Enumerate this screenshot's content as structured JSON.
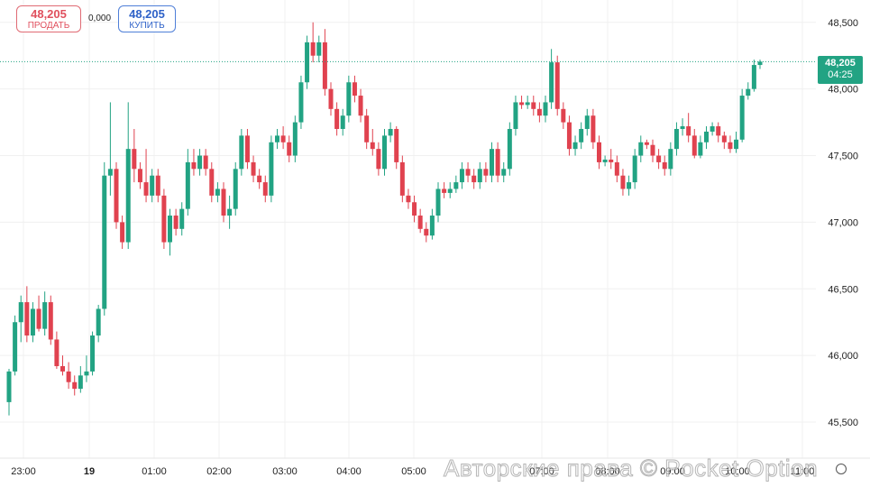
{
  "toolbar": {
    "sell": {
      "price": "48,205",
      "label": "ПРОДАТЬ"
    },
    "spread": "0,000",
    "buy": {
      "price": "48,205",
      "label": "КУПИТЬ"
    }
  },
  "current": {
    "price": "48,205",
    "countdown": "04:25"
  },
  "watermark": "Авторские права © Pocket Option",
  "colors": {
    "up": "#22a383",
    "down": "#e0424f",
    "grid": "#f0f0f0"
  },
  "chart_data": {
    "type": "candlestick",
    "y_ticks": [
      "45,500",
      "46,000",
      "46,500",
      "47,000",
      "47,500",
      "48,000",
      "48,500"
    ],
    "x_ticks": [
      "23:00",
      "19",
      "01:00",
      "02:00",
      "03:00",
      "04:00",
      "05:00",
      "07:00",
      "08:00",
      "09:00",
      "10:00",
      "11:00"
    ],
    "ylim": [
      45.25,
      48.6
    ],
    "last_price": 48.205,
    "candles": [
      [
        45.65,
        45.88,
        45.55,
        45.9
      ],
      [
        45.88,
        46.25,
        45.85,
        46.3
      ],
      [
        46.25,
        46.4,
        46.1,
        46.45
      ],
      [
        46.4,
        46.15,
        46.1,
        46.52
      ],
      [
        46.15,
        46.35,
        46.1,
        46.4
      ],
      [
        46.35,
        46.2,
        46.18,
        46.45
      ],
      [
        46.2,
        46.4,
        46.15,
        46.48
      ],
      [
        46.4,
        46.12,
        46.08,
        46.45
      ],
      [
        46.12,
        45.92,
        45.9,
        46.18
      ],
      [
        45.92,
        45.88,
        45.85,
        46.0
      ],
      [
        45.88,
        45.8,
        45.75,
        45.95
      ],
      [
        45.8,
        45.75,
        45.7,
        45.85
      ],
      [
        45.75,
        45.85,
        45.72,
        45.92
      ],
      [
        45.85,
        45.88,
        45.8,
        46.0
      ],
      [
        45.88,
        46.15,
        45.85,
        46.18
      ],
      [
        46.15,
        46.35,
        46.1,
        46.38
      ],
      [
        46.35,
        47.35,
        46.3,
        47.45
      ],
      [
        47.35,
        47.4,
        47.2,
        47.9
      ],
      [
        47.4,
        47.0,
        46.95,
        47.45
      ],
      [
        47.0,
        46.85,
        46.8,
        47.05
      ],
      [
        46.85,
        47.55,
        46.8,
        47.9
      ],
      [
        47.55,
        47.4,
        47.3,
        47.7
      ],
      [
        47.4,
        47.3,
        47.25,
        47.45
      ],
      [
        47.3,
        47.2,
        47.15,
        47.55
      ],
      [
        47.2,
        47.35,
        47.15,
        47.4
      ],
      [
        47.35,
        47.2,
        47.15,
        47.4
      ],
      [
        47.2,
        46.85,
        46.8,
        47.25
      ],
      [
        46.85,
        47.05,
        46.75,
        47.1
      ],
      [
        47.05,
        46.95,
        46.9,
        47.1
      ],
      [
        46.95,
        47.1,
        46.9,
        47.15
      ],
      [
        47.1,
        47.45,
        47.05,
        47.55
      ],
      [
        47.45,
        47.4,
        47.35,
        47.55
      ],
      [
        47.4,
        47.5,
        47.35,
        47.55
      ],
      [
        47.5,
        47.4,
        47.35,
        47.55
      ],
      [
        47.4,
        47.2,
        47.15,
        47.45
      ],
      [
        47.2,
        47.25,
        47.15,
        47.3
      ],
      [
        47.25,
        47.05,
        47.0,
        47.3
      ],
      [
        47.05,
        47.1,
        46.95,
        47.2
      ],
      [
        47.1,
        47.4,
        47.05,
        47.45
      ],
      [
        47.4,
        47.65,
        47.35,
        47.7
      ],
      [
        47.65,
        47.45,
        47.4,
        47.7
      ],
      [
        47.45,
        47.35,
        47.3,
        47.5
      ],
      [
        47.35,
        47.3,
        47.25,
        47.4
      ],
      [
        47.3,
        47.2,
        47.15,
        47.35
      ],
      [
        47.2,
        47.6,
        47.15,
        47.65
      ],
      [
        47.6,
        47.65,
        47.55,
        47.7
      ],
      [
        47.65,
        47.6,
        47.55,
        47.72
      ],
      [
        47.6,
        47.5,
        47.45,
        47.65
      ],
      [
        47.5,
        47.75,
        47.45,
        47.8
      ],
      [
        47.75,
        48.05,
        47.7,
        48.1
      ],
      [
        48.05,
        48.35,
        48.0,
        48.4
      ],
      [
        48.35,
        48.25,
        48.2,
        48.5
      ],
      [
        48.25,
        48.35,
        48.2,
        48.4
      ],
      [
        48.35,
        48.0,
        47.95,
        48.45
      ],
      [
        48.0,
        47.85,
        47.8,
        48.05
      ],
      [
        47.85,
        47.7,
        47.65,
        47.9
      ],
      [
        47.7,
        47.8,
        47.65,
        47.85
      ],
      [
        47.8,
        48.05,
        47.75,
        48.1
      ],
      [
        48.05,
        47.95,
        47.9,
        48.1
      ],
      [
        47.95,
        47.8,
        47.75,
        48.0
      ],
      [
        47.8,
        47.6,
        47.55,
        47.85
      ],
      [
        47.6,
        47.55,
        47.5,
        47.7
      ],
      [
        47.55,
        47.4,
        47.35,
        47.6
      ],
      [
        47.4,
        47.65,
        47.35,
        47.7
      ],
      [
        47.65,
        47.7,
        47.6,
        47.75
      ],
      [
        47.7,
        47.45,
        47.4,
        47.72
      ],
      [
        47.45,
        47.2,
        47.15,
        47.5
      ],
      [
        47.2,
        47.15,
        47.1,
        47.25
      ],
      [
        47.15,
        47.05,
        47.0,
        47.2
      ],
      [
        47.05,
        46.95,
        46.92,
        47.1
      ],
      [
        46.95,
        46.9,
        46.85,
        47.0
      ],
      [
        46.9,
        47.05,
        46.87,
        47.1
      ],
      [
        47.05,
        47.25,
        47.0,
        47.3
      ],
      [
        47.25,
        47.22,
        47.18,
        47.3
      ],
      [
        47.22,
        47.25,
        47.18,
        47.3
      ],
      [
        47.25,
        47.3,
        47.22,
        47.35
      ],
      [
        47.3,
        47.4,
        47.25,
        47.45
      ],
      [
        47.4,
        47.35,
        47.3,
        47.45
      ],
      [
        47.35,
        47.3,
        47.25,
        47.4
      ],
      [
        47.3,
        47.4,
        47.25,
        47.45
      ],
      [
        47.4,
        47.35,
        47.3,
        47.45
      ],
      [
        47.35,
        47.55,
        47.3,
        47.6
      ],
      [
        47.55,
        47.35,
        47.3,
        47.6
      ],
      [
        47.35,
        47.4,
        47.3,
        47.45
      ],
      [
        47.4,
        47.7,
        47.35,
        47.75
      ],
      [
        47.7,
        47.9,
        47.65,
        47.95
      ],
      [
        47.9,
        47.88,
        47.85,
        47.95
      ],
      [
        47.88,
        47.9,
        47.85,
        47.95
      ],
      [
        47.9,
        47.85,
        47.8,
        47.95
      ],
      [
        47.85,
        47.8,
        47.75,
        47.9
      ],
      [
        47.8,
        47.9,
        47.75,
        47.95
      ],
      [
        47.9,
        48.2,
        47.85,
        48.3
      ],
      [
        48.2,
        47.85,
        47.8,
        48.25
      ],
      [
        47.85,
        47.75,
        47.7,
        47.9
      ],
      [
        47.75,
        47.55,
        47.5,
        47.8
      ],
      [
        47.55,
        47.6,
        47.5,
        47.65
      ],
      [
        47.6,
        47.7,
        47.55,
        47.75
      ],
      [
        47.7,
        47.8,
        47.65,
        47.85
      ],
      [
        47.8,
        47.6,
        47.55,
        47.85
      ],
      [
        47.6,
        47.45,
        47.4,
        47.65
      ],
      [
        47.45,
        47.47,
        47.42,
        47.5
      ],
      [
        47.47,
        47.45,
        47.4,
        47.55
      ],
      [
        47.45,
        47.35,
        47.3,
        47.5
      ],
      [
        47.35,
        47.25,
        47.2,
        47.4
      ],
      [
        47.25,
        47.3,
        47.2,
        47.35
      ],
      [
        47.3,
        47.5,
        47.25,
        47.55
      ],
      [
        47.5,
        47.6,
        47.45,
        47.65
      ],
      [
        47.6,
        47.58,
        47.55,
        47.62
      ],
      [
        47.58,
        47.5,
        47.45,
        47.62
      ],
      [
        47.5,
        47.45,
        47.4,
        47.55
      ],
      [
        47.45,
        47.4,
        47.35,
        47.5
      ],
      [
        47.4,
        47.55,
        47.35,
        47.6
      ],
      [
        47.55,
        47.7,
        47.5,
        47.75
      ],
      [
        47.7,
        47.72,
        47.65,
        47.78
      ],
      [
        47.72,
        47.65,
        47.6,
        47.82
      ],
      [
        47.65,
        47.5,
        47.48,
        47.7
      ],
      [
        47.5,
        47.6,
        47.48,
        47.65
      ],
      [
        47.6,
        47.68,
        47.55,
        47.72
      ],
      [
        47.68,
        47.72,
        47.65,
        47.75
      ],
      [
        47.72,
        47.65,
        47.6,
        47.75
      ],
      [
        47.65,
        47.6,
        47.55,
        47.68
      ],
      [
        47.6,
        47.55,
        47.52,
        47.65
      ],
      [
        47.55,
        47.62,
        47.52,
        47.68
      ],
      [
        47.62,
        47.95,
        47.6,
        48.0
      ],
      [
        47.95,
        48.0,
        47.92,
        48.05
      ],
      [
        48.0,
        48.18,
        47.98,
        48.22
      ],
      [
        48.18,
        48.205,
        48.15,
        48.22
      ]
    ]
  }
}
